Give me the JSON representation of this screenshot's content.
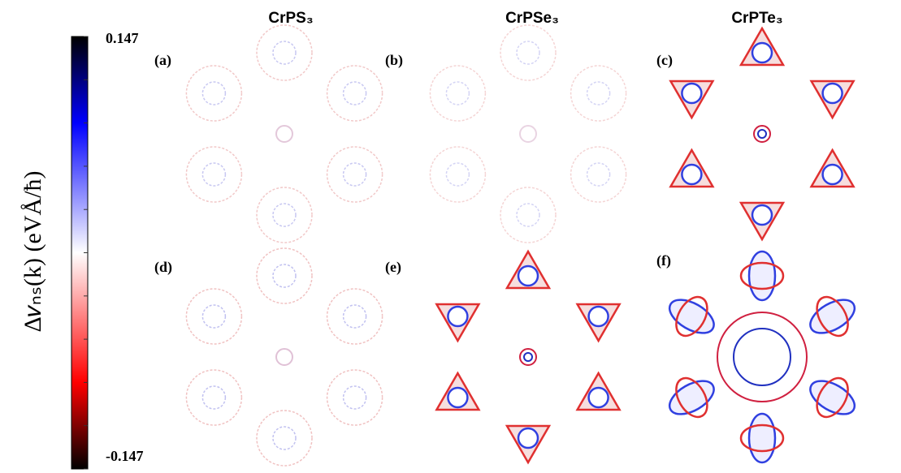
{
  "colorbar": {
    "label": "Δ𝑣ₙₛ(k) (eVÅ/ħ)",
    "max": 0.147,
    "min": -0.147
  },
  "columns": [
    "CrPS₃",
    "CrPSe₃",
    "CrPTe₃"
  ],
  "panels": [
    "(a)",
    "(b)",
    "(c)",
    "(d)",
    "(e)",
    "(f)"
  ]
}
